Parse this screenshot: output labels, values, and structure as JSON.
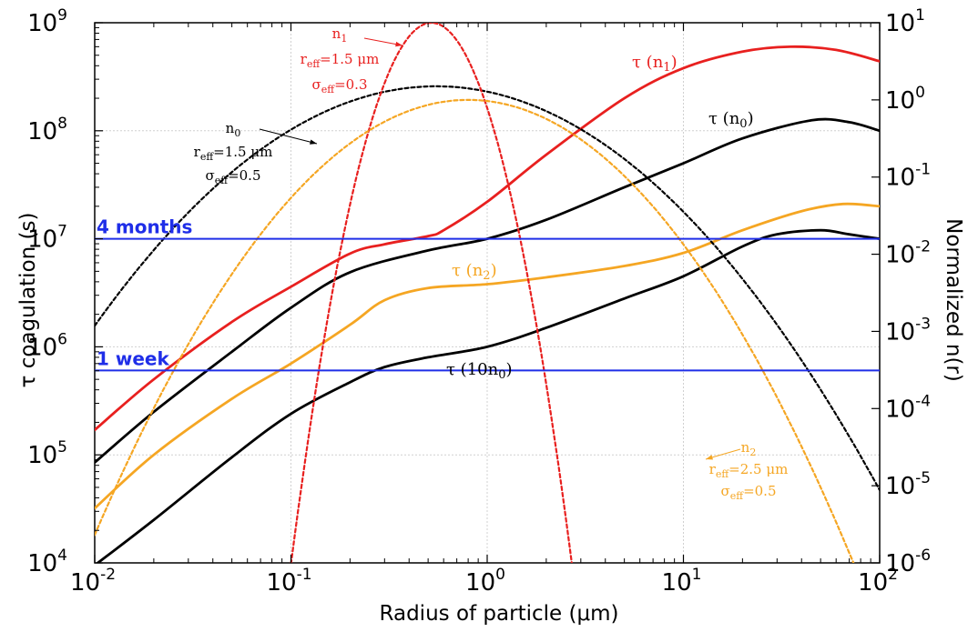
{
  "chart_data": {
    "type": "line",
    "xlabel": "Radius of particle (μm)",
    "ylabel_left": "τ coagulation (s)",
    "ylabel_right": "Normalized n(r)",
    "x_scale": "log",
    "xlim": [
      0.01,
      100
    ],
    "ylim_left": [
      10000,
      1000000000
    ],
    "ylim_right": [
      1e-06,
      10
    ],
    "grid": true,
    "x_ticks": [
      {
        "base": "10",
        "exp": "-2",
        "value": 0.01
      },
      {
        "base": "10",
        "exp": "-1",
        "value": 0.1
      },
      {
        "base": "10",
        "exp": "0",
        "value": 1
      },
      {
        "base": "10",
        "exp": "1",
        "value": 10
      },
      {
        "base": "10",
        "exp": "2",
        "value": 100
      }
    ],
    "y_ticks_left": [
      {
        "base": "10",
        "exp": "4",
        "value": 10000
      },
      {
        "base": "10",
        "exp": "5",
        "value": 100000
      },
      {
        "base": "10",
        "exp": "6",
        "value": 1000000
      },
      {
        "base": "10",
        "exp": "7",
        "value": 10000000
      },
      {
        "base": "10",
        "exp": "8",
        "value": 100000000
      },
      {
        "base": "10",
        "exp": "9",
        "value": 1000000000
      }
    ],
    "y_ticks_right": [
      {
        "base": "10",
        "exp": "-6",
        "value": 1e-06
      },
      {
        "base": "10",
        "exp": "-5",
        "value": 1e-05
      },
      {
        "base": "10",
        "exp": "-4",
        "value": 0.0001
      },
      {
        "base": "10",
        "exp": "-3",
        "value": 0.001
      },
      {
        "base": "10",
        "exp": "-2",
        "value": 0.01
      },
      {
        "base": "10",
        "exp": "-1",
        "value": 0.1
      },
      {
        "base": "10",
        "exp": "0",
        "value": 1
      },
      {
        "base": "10",
        "exp": "1",
        "value": 10
      }
    ],
    "hlines": [
      {
        "label": "4 months",
        "y": 10000000,
        "color": "#1f2ee8"
      },
      {
        "label": "1 week",
        "y": 604800,
        "color": "#1f2ee8"
      }
    ],
    "series": [
      {
        "key": "tau_n1",
        "axis": "left",
        "style": "solid",
        "color": "#e8201f",
        "x": [
          0.01,
          0.02,
          0.05,
          0.1,
          0.2,
          0.3,
          0.5,
          0.6,
          1,
          2,
          5,
          10,
          20,
          35,
          60,
          100
        ],
        "y": [
          170000,
          500000,
          1700000,
          3600000,
          7300000,
          8900000,
          10600000,
          12000000,
          22000000,
          60000000,
          200000000,
          380000000,
          540000000,
          600000000,
          560000000,
          440000000
        ]
      },
      {
        "key": "tau_n0",
        "axis": "left",
        "style": "solid",
        "color": "#000000",
        "x": [
          0.01,
          0.02,
          0.05,
          0.1,
          0.2,
          0.5,
          1,
          2,
          5,
          10,
          20,
          45,
          70,
          100
        ],
        "y": [
          85000,
          250000,
          900000,
          2300000,
          4900000,
          7800000,
          10000000,
          15000000,
          30000000,
          50000000,
          85000000,
          125000000,
          120000000,
          100000000
        ]
      },
      {
        "key": "tau_n2",
        "axis": "left",
        "style": "solid",
        "color": "#f5a623",
        "x": [
          0.01,
          0.02,
          0.05,
          0.1,
          0.2,
          0.3,
          0.5,
          1,
          2,
          5,
          10,
          20,
          40,
          65,
          100
        ],
        "y": [
          32000,
          100000,
          330000,
          700000,
          1600000,
          2700000,
          3500000,
          3800000,
          4400000,
          5600000,
          7400000,
          12000000,
          18000000,
          21000000,
          20000000
        ]
      },
      {
        "key": "tau_10n0",
        "axis": "left",
        "style": "solid",
        "color": "#000000",
        "x": [
          0.01,
          0.02,
          0.05,
          0.1,
          0.2,
          0.3,
          0.5,
          1,
          2,
          5,
          10,
          20,
          30,
          50,
          70,
          100
        ],
        "y": [
          9500,
          25000,
          95000,
          240000,
          470000,
          650000,
          800000,
          1000000,
          1500000,
          2800000,
          4500000,
          8500000,
          11000000,
          12000000,
          11000000,
          10000000
        ]
      },
      {
        "key": "n0",
        "axis": "right",
        "style": "dashed",
        "color": "#000000",
        "peak_x": 0.55,
        "peak_y": 1.5,
        "width": 1.06
      },
      {
        "key": "n1",
        "axis": "right",
        "style": "dashed",
        "color": "#e8201f",
        "peak_x": 0.52,
        "peak_y": 10,
        "width": 0.29
      },
      {
        "key": "n2",
        "axis": "right",
        "style": "dashed",
        "color": "#f5a623",
        "peak_x": 0.8,
        "peak_y": 1.0,
        "width": 0.86
      }
    ],
    "annotations": [
      {
        "key": "tau_n1",
        "color": "#e8201f",
        "parts": [
          {
            "t": "τ (n"
          },
          {
            "t": "1",
            "sub": true
          },
          {
            "t": ")"
          }
        ]
      },
      {
        "key": "tau_n0",
        "color": "#000000",
        "parts": [
          {
            "t": "τ (n"
          },
          {
            "t": "0",
            "sub": true
          },
          {
            "t": ")"
          }
        ]
      },
      {
        "key": "tau_n2",
        "color": "#f5a623",
        "parts": [
          {
            "t": "τ (n"
          },
          {
            "t": "2",
            "sub": true
          },
          {
            "t": ")"
          }
        ]
      },
      {
        "key": "tau_10n0",
        "color": "#000000",
        "parts": [
          {
            "t": "τ (10n"
          },
          {
            "t": "0",
            "sub": true
          },
          {
            "t": ")"
          }
        ]
      },
      {
        "key": "n1_label",
        "color": "#e8201f",
        "lines": [
          [
            {
              "t": "n"
            },
            {
              "t": "1",
              "sub": true
            }
          ],
          [
            {
              "t": "r"
            },
            {
              "t": "eff",
              "sub": true
            },
            {
              "t": "=1.5 μm"
            }
          ],
          [
            {
              "t": "σ"
            },
            {
              "t": "eff",
              "sub": true
            },
            {
              "t": "=0.3"
            }
          ]
        ]
      },
      {
        "key": "n0_label",
        "color": "#000000",
        "lines": [
          [
            {
              "t": "n"
            },
            {
              "t": "0",
              "sub": true
            }
          ],
          [
            {
              "t": "r"
            },
            {
              "t": "eff",
              "sub": true
            },
            {
              "t": "=1.5 μm"
            }
          ],
          [
            {
              "t": "σ"
            },
            {
              "t": "eff",
              "sub": true
            },
            {
              "t": "=0.5"
            }
          ]
        ]
      },
      {
        "key": "n2_label",
        "color": "#f5a623",
        "lines": [
          [
            {
              "t": "n"
            },
            {
              "t": "2",
              "sub": true
            }
          ],
          [
            {
              "t": "r"
            },
            {
              "t": "eff",
              "sub": true
            },
            {
              "t": "=2.5 μm"
            }
          ],
          [
            {
              "t": "σ"
            },
            {
              "t": "eff",
              "sub": true
            },
            {
              "t": "=0.5"
            }
          ]
        ]
      }
    ]
  }
}
